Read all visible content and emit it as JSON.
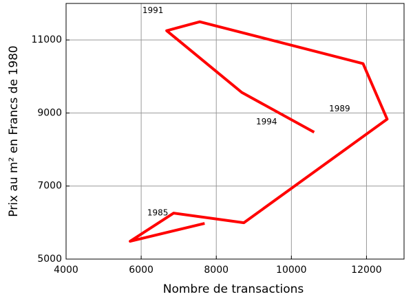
{
  "chart_data": {
    "type": "line",
    "x_label": "Nombre de transactions",
    "y_label": "Prix au m² en Francs de 1980",
    "series": [
      {
        "color": "#ff0000",
        "x": [
          7690,
          5706,
          6862,
          8734,
          12550,
          11908,
          7560,
          6679,
          8679,
          10606
        ],
        "values": [
          5977,
          5488,
          6258,
          5995,
          8831,
          10352,
          11498,
          11254,
          9563,
          8474
        ]
      }
    ],
    "annotations": [
      {
        "text": "1991",
        "x": 6312,
        "y": 11798
      },
      {
        "text": "1989",
        "x": 11284,
        "y": 9113
      },
      {
        "text": "1994",
        "x": 9339,
        "y": 8756
      },
      {
        "text": "1985",
        "x": 6440,
        "y": 6258
      }
    ],
    "xlim": [
      4000,
      13000
    ],
    "ylim": [
      5000,
      12000
    ],
    "xticks": [
      4000,
      6000,
      8000,
      10000,
      12000
    ],
    "yticks": [
      5000,
      7000,
      9000,
      11000
    ],
    "grid": true
  }
}
